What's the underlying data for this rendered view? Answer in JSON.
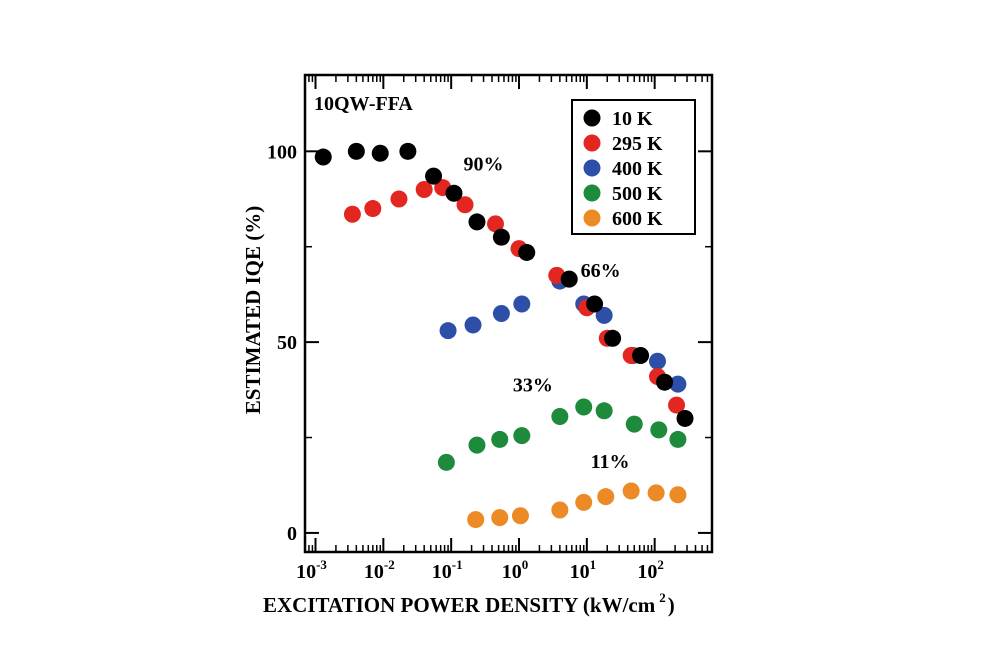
{
  "chart_data": {
    "type": "scatter",
    "sample_label": "10QW-FFA",
    "xlabel": "EXCITATION POWER DENSITY (kW/cm",
    "xlabel_sup": "2",
    "xlabel_close": ")",
    "ylabel": "ESTIMATED IQE (%)",
    "xscale": "log",
    "xlim": [
      0.0007,
      700
    ],
    "ylim": [
      -5,
      120
    ],
    "x_ticks": [
      {
        "base": "10",
        "exp": "-3",
        "value": 0.001
      },
      {
        "base": "10",
        "exp": "-2",
        "value": 0.01
      },
      {
        "base": "10",
        "exp": "-1",
        "value": 0.1
      },
      {
        "base": "10",
        "exp": "0",
        "value": 1
      },
      {
        "base": "10",
        "exp": "1",
        "value": 10
      },
      {
        "base": "10",
        "exp": "2",
        "value": 100
      }
    ],
    "y_ticks": [
      {
        "label": "0",
        "value": 0
      },
      {
        "label": "50",
        "value": 50
      },
      {
        "label": "100",
        "value": 100
      }
    ],
    "y_minor_ticks": [
      25,
      75
    ],
    "legend_position": "top-right",
    "series": [
      {
        "name": "10 K",
        "color": "#000000",
        "x": [
          0.0013,
          0.004,
          0.009,
          0.023,
          0.055,
          0.11,
          0.24,
          0.55,
          1.3,
          5.5,
          13,
          24,
          62,
          140,
          280
        ],
        "y": [
          98.5,
          100,
          99.5,
          100,
          93.5,
          89,
          81.5,
          77.5,
          73.5,
          66.5,
          60,
          51,
          46.5,
          39.5,
          30
        ]
      },
      {
        "name": "295 K",
        "color": "#e3261f",
        "x": [
          0.0035,
          0.007,
          0.017,
          0.04,
          0.075,
          0.16,
          0.45,
          1.0,
          3.6,
          10,
          20,
          45,
          110,
          210
        ],
        "y": [
          83.5,
          85,
          87.5,
          90,
          90.5,
          86,
          81,
          74.5,
          67.5,
          59,
          51,
          46.5,
          41,
          33.5
        ]
      },
      {
        "name": "400 K",
        "color": "#2d4fa7",
        "x": [
          0.09,
          0.21,
          0.55,
          1.1,
          4.0,
          9.0,
          18,
          48,
          110,
          220
        ],
        "y": [
          53,
          54.5,
          57.5,
          60,
          66,
          60,
          57,
          46.5,
          45,
          39
        ]
      },
      {
        "name": "500 K",
        "color": "#1e8a3b",
        "x": [
          0.085,
          0.24,
          0.52,
          1.1,
          4.0,
          9.0,
          18,
          50,
          115,
          220
        ],
        "y": [
          18.5,
          23,
          24.5,
          25.5,
          30.5,
          33,
          32,
          28.5,
          27,
          24.5
        ]
      },
      {
        "name": "600 K",
        "color": "#ec8a25",
        "x": [
          0.23,
          0.52,
          1.05,
          4.0,
          9.0,
          19,
          45,
          105,
          220
        ],
        "y": [
          3.5,
          4,
          4.5,
          6,
          8,
          9.5,
          11,
          10.5,
          10
        ]
      }
    ],
    "annotations": [
      {
        "text": "90%",
        "x": 0.3,
        "y": 95
      },
      {
        "text": "66%",
        "x": 16,
        "y": 67
      },
      {
        "text": "33%",
        "x": 1.6,
        "y": 37
      },
      {
        "text": "11%",
        "x": 22,
        "y": 17
      }
    ]
  }
}
